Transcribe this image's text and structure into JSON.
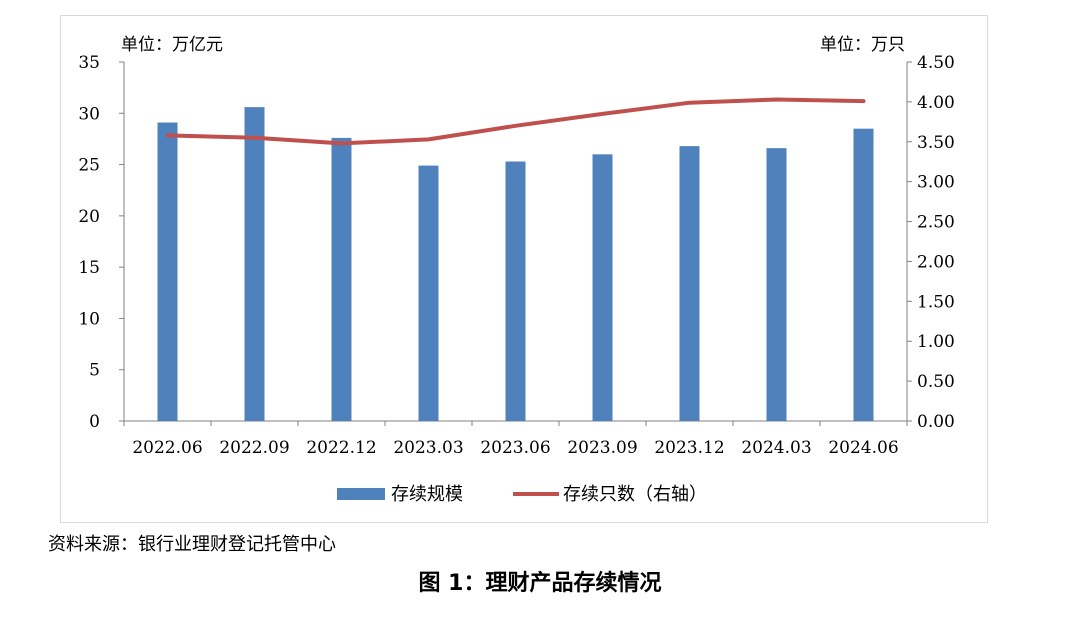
{
  "chart_data": {
    "type": "bar",
    "categories": [
      "2022.06",
      "2022.09",
      "2022.12",
      "2023.03",
      "2023.06",
      "2023.09",
      "2023.12",
      "2024.03",
      "2024.06"
    ],
    "series": [
      {
        "name": "存续规模",
        "type": "bar",
        "axis": "left",
        "values": [
          29.1,
          30.6,
          27.6,
          24.9,
          25.3,
          26.0,
          26.8,
          26.6,
          28.5
        ]
      },
      {
        "name": "存续只数（右轴）",
        "type": "line",
        "axis": "right",
        "values": [
          3.58,
          3.55,
          3.48,
          3.53,
          3.7,
          3.85,
          3.99,
          4.03,
          4.01
        ]
      }
    ],
    "left_axis": {
      "unit_label": "单位：万亿元",
      "min": 0,
      "max": 35,
      "step": 5,
      "ticks": [
        "0",
        "5",
        "10",
        "15",
        "20",
        "25",
        "30",
        "35"
      ]
    },
    "right_axis": {
      "unit_label": "单位：万只",
      "min": 0,
      "max": 4.5,
      "step": 0.5,
      "ticks": [
        "0.00",
        "0.50",
        "1.00",
        "1.50",
        "2.00",
        "2.50",
        "3.00",
        "3.50",
        "4.00",
        "4.50"
      ]
    },
    "grid": false,
    "legend_position": "bottom",
    "colors": {
      "bar": "#4F81BD",
      "line": "#C0504D",
      "axis": "#808080"
    }
  },
  "source_text": "资料来源：银行业理财登记托管中心",
  "caption": "图 1：理财产品存续情况"
}
